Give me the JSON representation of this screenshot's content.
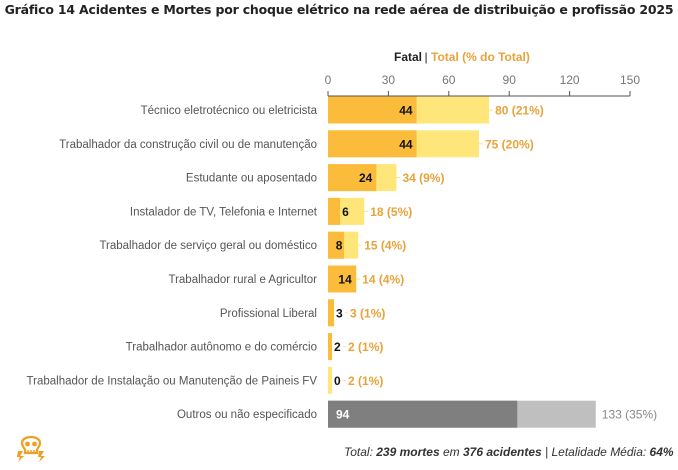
{
  "chart_data": {
    "type": "bar",
    "orientation": "horizontal",
    "title": "Gráfico 14 Acidentes e Mortes por choque elétrico na rede aérea de distribuição e profissão 2025",
    "legend": {
      "fatal_label": "Fatal",
      "separator": " | ",
      "total_label": "Total (% do Total)",
      "placement": "top"
    },
    "xlim": [
      0,
      150
    ],
    "xticks": [
      0,
      30,
      60,
      90,
      120,
      150
    ],
    "categories": [
      "Técnico eletrotécnico ou eletricista",
      "Trabalhador da construção civil ou de manutenção",
      "Estudante ou aposentado",
      "Instalador de TV, Telefonia e Internet",
      "Trabalhador de serviço geral ou doméstico",
      "Trabalhador rural e Agricultor",
      "Profissional Liberal",
      "Trabalhador autônomo e do comércio",
      "Trabalhador de Instalação ou Manutenção de Paineis FV",
      "Outros ou não especificado"
    ],
    "series": [
      {
        "name": "Fatal",
        "values": [
          44,
          44,
          24,
          6,
          8,
          14,
          3,
          2,
          0,
          94
        ]
      },
      {
        "name": "Total",
        "values": [
          80,
          75,
          34,
          18,
          15,
          14,
          3,
          2,
          2,
          133
        ]
      }
    ],
    "total_labels": [
      "80 (21%)",
      "75 (20%)",
      "34 (9%)",
      "18 (5%)",
      "15 (4%)",
      "14 (4%)",
      "3 (1%)",
      "2 (1%)",
      "2 (1%)",
      "133 (35%)"
    ],
    "colors": {
      "fatal": "#FBBC3C",
      "total": "#FEE67A",
      "other_fatal": "#7F7F7F",
      "other_total": "#BFBFBF",
      "total_label": "#E8A33A",
      "other_label": "#888888"
    }
  },
  "footer": {
    "prefix": "Total: ",
    "deaths": "239 mortes",
    "mid": " em ",
    "accidents": "376 acidentes",
    "sep": " | Letalidade Média: ",
    "lethality": "64%"
  },
  "icon": "skull-lightning-icon"
}
